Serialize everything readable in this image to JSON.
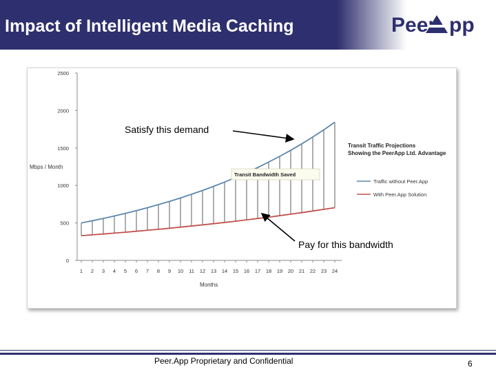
{
  "header": {
    "title": "Impact of Intelligent Media Caching"
  },
  "logo": {
    "text": "PeerApp"
  },
  "footer": {
    "text": "Peer.App Proprietary and Confidential",
    "page": "6"
  },
  "colors": {
    "header_bg": "#2e2f6e",
    "series_without": "#5b86ad",
    "series_with": "#c0504d"
  },
  "chart_data": {
    "type": "line",
    "title": "Transit Traffic Projections Showing the PeerApp Ltd. Advantage",
    "xlabel": "Months",
    "ylabel": "Mbps / Month",
    "ylim": [
      0,
      2500
    ],
    "yticks": [
      0,
      500,
      1000,
      1500,
      2000,
      2500
    ],
    "x": [
      1,
      2,
      3,
      4,
      5,
      6,
      7,
      8,
      9,
      10,
      11,
      12,
      13,
      14,
      15,
      16,
      17,
      18,
      19,
      20,
      21,
      22,
      23,
      24
    ],
    "series": [
      {
        "name": "Traffic without Peer.App",
        "values": [
          500,
          529,
          560,
          593,
          627,
          664,
          703,
          744,
          787,
          833,
          882,
          933,
          988,
          1045,
          1106,
          1171,
          1239,
          1312,
          1388,
          1469,
          1555,
          1646,
          1742,
          1844
        ]
      },
      {
        "name": "With Peer.App Solution",
        "values": [
          330,
          341,
          352,
          364,
          376,
          389,
          402,
          415,
          429,
          444,
          459,
          474,
          490,
          506,
          523,
          541,
          559,
          577,
          597,
          617,
          637,
          659,
          681,
          703
        ]
      }
    ],
    "annotations": {
      "shaded_region": "Transit Bandwidth Saved",
      "demand": "Satisfy this demand",
      "pay": "Pay for this bandwidth"
    }
  }
}
